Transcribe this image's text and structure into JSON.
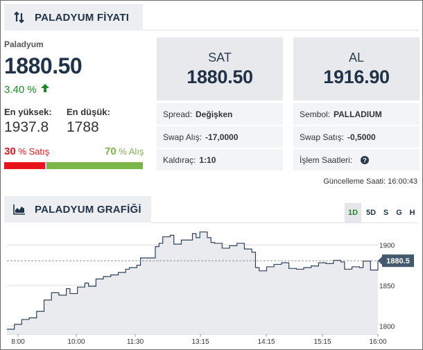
{
  "header": {
    "title": "PALADYUM FİYATI",
    "icon": "sort-arrows-icon"
  },
  "summary": {
    "name": "Paladyum",
    "price": "1880.50",
    "change": "3.40 %",
    "change_direction": "up",
    "high_label": "En yüksek:",
    "high_value": "1937.8",
    "low_label": "En düşük:",
    "low_value": "1788",
    "sell_pct": "30",
    "sell_label": "% Satış",
    "buy_pct": "70",
    "buy_label": "% Alış",
    "sell_fraction": 0.3,
    "buy_fraction": 0.7
  },
  "quotes": {
    "sell": {
      "label": "SAT",
      "value": "1880.50"
    },
    "buy": {
      "label": "AL",
      "value": "1916.90"
    }
  },
  "info": {
    "spread_label": "Spread:",
    "spread_value": "Değişken",
    "symbol_label": "Sembol:",
    "symbol_value": "PALLADIUM",
    "swap_buy_label": "Swap Alış:",
    "swap_buy_value": "-17,0000",
    "swap_sell_label": "Swap Satış:",
    "swap_sell_value": "-0,5000",
    "leverage_label": "Kaldıraç:",
    "leverage_value": "1:10",
    "hours_label": "İşlem Saatleri:",
    "hours_icon": "help-circle-icon",
    "update_text": "Güncelleme Saati: 16:00:43"
  },
  "chart_section": {
    "title": "PALADYUM GRAFİĞİ",
    "icon": "area-chart-icon",
    "timeframes": [
      "1D",
      "5D",
      "S",
      "G",
      "H"
    ],
    "active_timeframe": "1D"
  },
  "colors": {
    "sell": "#e8141c",
    "buy": "#7ab648",
    "up": "#1e8a27",
    "line": "#2d4158",
    "area": "#e9ebee",
    "current_label_bg": "#44596d"
  },
  "chart_data": {
    "type": "area",
    "x_ticks": [
      "8:00",
      "10:00",
      "11:30",
      "13:15",
      "14:15",
      "15:15",
      "16:00"
    ],
    "y_ticks": [
      1900,
      1850,
      1800
    ],
    "ylim": [
      1790,
      1920
    ],
    "current_value": "1880.5",
    "current_value_num": 1880.5,
    "series": [
      {
        "x": [
          0,
          0.02,
          0.04,
          0.06,
          0.08,
          0.1,
          0.12,
          0.14,
          0.16,
          0.17,
          0.19,
          0.21,
          0.22,
          0.24,
          0.26,
          0.28,
          0.3,
          0.32,
          0.33,
          0.35,
          0.36,
          0.4,
          0.41,
          0.42,
          0.44,
          0.45,
          0.47,
          0.5,
          0.51,
          0.52,
          0.54,
          0.55,
          0.56,
          0.58,
          0.6,
          0.62,
          0.64,
          0.66,
          0.67,
          0.68,
          0.7,
          0.72,
          0.74,
          0.76,
          0.78,
          0.8,
          0.82,
          0.84,
          0.86,
          0.88,
          0.9,
          0.91,
          0.93,
          0.95,
          0.96,
          0.98,
          1.0
        ],
        "y": [
          1796,
          1802,
          1808,
          1810,
          1818,
          1832,
          1841,
          1838,
          1846,
          1840,
          1848,
          1853,
          1849,
          1858,
          1861,
          1863,
          1866,
          1870,
          1872,
          1875,
          1884,
          1898,
          1902,
          1910,
          1912,
          1901,
          1906,
          1914,
          1909,
          1916,
          1909,
          1903,
          1902,
          1896,
          1899,
          1902,
          1895,
          1891,
          1872,
          1868,
          1873,
          1876,
          1878,
          1871,
          1870,
          1872,
          1874,
          1878,
          1877,
          1881,
          1879,
          1870,
          1873,
          1872,
          1880,
          1869,
          1880.5
        ]
      }
    ],
    "grid": true
  }
}
